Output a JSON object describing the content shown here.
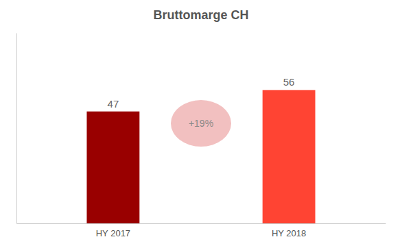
{
  "chart_data": {
    "type": "bar",
    "title": "Bruttomarge CH",
    "categories": [
      "HY 2017",
      "HY 2018"
    ],
    "values": [
      47,
      56
    ],
    "colors": [
      "#990000",
      "#FF4433"
    ],
    "ylim": [
      0,
      80
    ],
    "data_labels": true,
    "tick_labels": "x",
    "grid": false,
    "annotation": "+19%"
  }
}
